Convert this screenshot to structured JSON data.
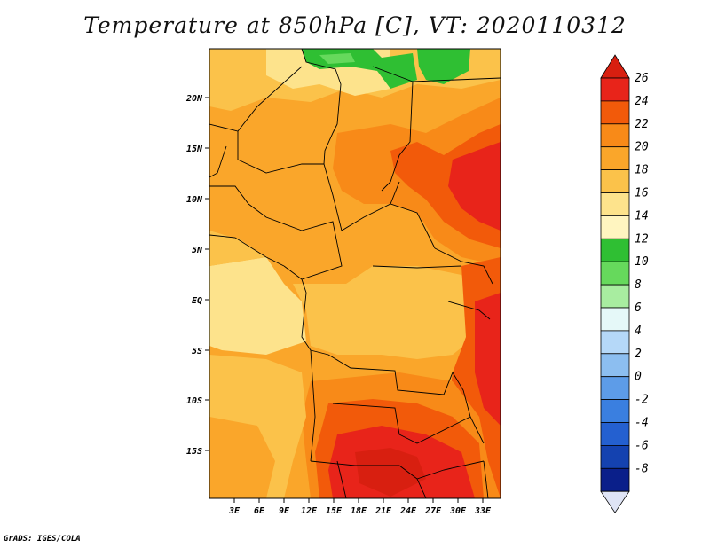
{
  "title": "Temperature at 850hPa [C], VT: 2020110312",
  "credit": "GrADS: IGES/COLA",
  "lat_labels": [
    "20N",
    "15N",
    "10N",
    "5N",
    "EQ",
    "5S",
    "10S",
    "15S"
  ],
  "lon_labels": [
    "3E",
    "6E",
    "9E",
    "12E",
    "15E",
    "18E",
    "21E",
    "24E",
    "27E",
    "30E",
    "33E"
  ],
  "colorbar": {
    "labels": [
      "26",
      "24",
      "22",
      "20",
      "18",
      "16",
      "14",
      "12",
      "10",
      "8",
      "6",
      "4",
      "2",
      "0",
      "-2",
      "-4",
      "-6",
      "-8"
    ],
    "colors": [
      "#e8241a",
      "#f25a0a",
      "#f88a18",
      "#faa62a",
      "#fbc24a",
      "#fde38c",
      "#fff5c0",
      "#2fbf33",
      "#66d95c",
      "#a8eda0",
      "#e5f8f8",
      "#b5d8f8",
      "#8cbef0",
      "#5d9ce8",
      "#3a7fe0",
      "#2460d0",
      "#1442b0",
      "#0a1f8a",
      "#050a5a"
    ],
    "top_color": "#d81f10",
    "bottom_color": "#dfe4f5"
  }
}
